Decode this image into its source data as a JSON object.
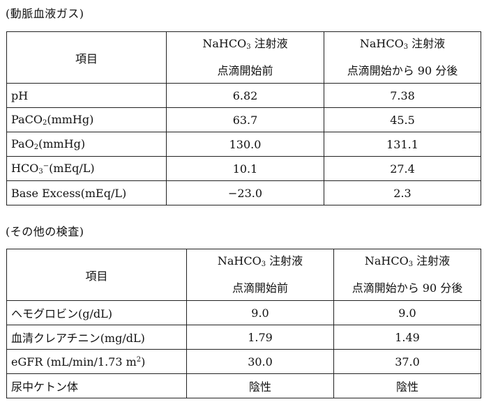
{
  "blood_gas": {
    "title": "(動脈血液ガス)",
    "header": {
      "item": "項目",
      "col1_line1_a": "NaHCO",
      "col1_line1_sub": "3",
      "col1_line1_b": " 注射液",
      "col1_line2": "点滴開始前",
      "col2_line1_a": "NaHCO",
      "col2_line1_sub": "3",
      "col2_line1_b": " 注射液",
      "col2_line2": "点滴開始から 90 分後"
    },
    "rows": [
      {
        "label_a": "pH",
        "label_sub": "",
        "label_sup": "",
        "label_b": "",
        "before": "6.82",
        "after": "7.38"
      },
      {
        "label_a": "PaCO",
        "label_sub": "2",
        "label_sup": "",
        "label_b": "(mmHg)",
        "before": "63.7",
        "after": "45.5"
      },
      {
        "label_a": "PaO",
        "label_sub": "2",
        "label_sup": "",
        "label_b": "(mmHg)",
        "before": "130.0",
        "after": "131.1"
      },
      {
        "label_a": "HCO",
        "label_sub": "3",
        "label_sup": "−",
        "label_b": "(mEq/L)",
        "before": "10.1",
        "after": "27.4"
      },
      {
        "label_a": "Base Excess",
        "label_sub": "",
        "label_sup": "",
        "label_b": "(mEq/L)",
        "before": "−23.0",
        "after": "2.3"
      }
    ]
  },
  "other_tests": {
    "title": "(その他の検査)",
    "header": {
      "item": "項目",
      "col1_line1_a": "NaHCO",
      "col1_line1_sub": "3",
      "col1_line1_b": " 注射液",
      "col1_line2": "点滴開始前",
      "col2_line1_a": "NaHCO",
      "col2_line1_sub": "3",
      "col2_line1_b": " 注射液",
      "col2_line2": "点滴開始から 90 分後"
    },
    "rows": [
      {
        "label_a": "ヘモグロビン",
        "label_sup": "",
        "label_b": "(g/dL)",
        "before": "9.0",
        "after": "9.0"
      },
      {
        "label_a": "血清クレアチニン",
        "label_sup": "",
        "label_b": "(mg/dL)",
        "before": "1.79",
        "after": "1.49"
      },
      {
        "label_a": "eGFR (mL/min/1.73 m",
        "label_sup": "2",
        "label_b": ")",
        "before": "30.0",
        "after": "37.0"
      },
      {
        "label_a": "尿中ケトン体",
        "label_sup": "",
        "label_b": "",
        "before": "陰性",
        "after": "陰性"
      }
    ]
  }
}
